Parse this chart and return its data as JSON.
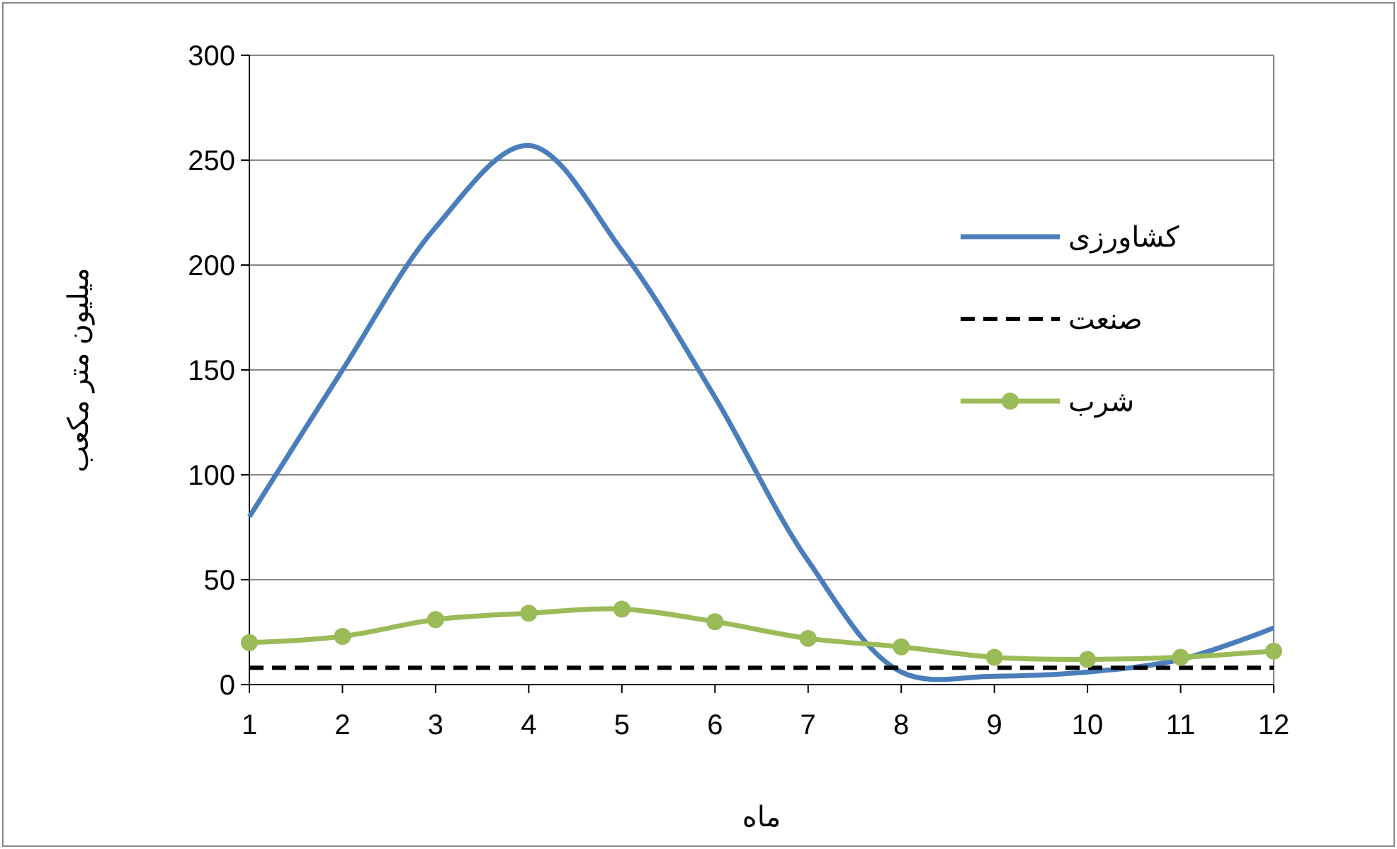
{
  "chart_data": {
    "type": "line",
    "xlabel": "ماه",
    "ylabel": "میلیون متر مکعب",
    "x": [
      1,
      2,
      3,
      4,
      5,
      6,
      7,
      8,
      9,
      10,
      11,
      12
    ],
    "xlim": [
      1,
      12
    ],
    "xticks": [
      1,
      2,
      3,
      4,
      5,
      6,
      7,
      8,
      9,
      10,
      11,
      12
    ],
    "ylim": [
      0,
      300
    ],
    "yticks": [
      0,
      50,
      100,
      150,
      200,
      250,
      300
    ],
    "grid": "y",
    "legend": "right",
    "series": [
      {
        "name": "کشاورزی",
        "color": "#4a7ebb",
        "values": [
          80,
          150,
          218,
          257,
          207,
          137,
          59,
          6,
          4,
          6,
          12,
          27
        ],
        "line_style": "solid",
        "marker": "none"
      },
      {
        "name": "صنعت",
        "color": "#000000",
        "values": [
          8,
          8,
          8,
          8,
          8,
          8,
          8,
          8,
          8,
          8,
          8,
          8
        ],
        "line_style": "dashed",
        "marker": "none"
      },
      {
        "name": "شرب",
        "color": "#9bbb59",
        "values": [
          20,
          23,
          31,
          34,
          36,
          30,
          22,
          18,
          13,
          12,
          13,
          16
        ],
        "line_style": "solid",
        "marker": "circle"
      }
    ]
  }
}
